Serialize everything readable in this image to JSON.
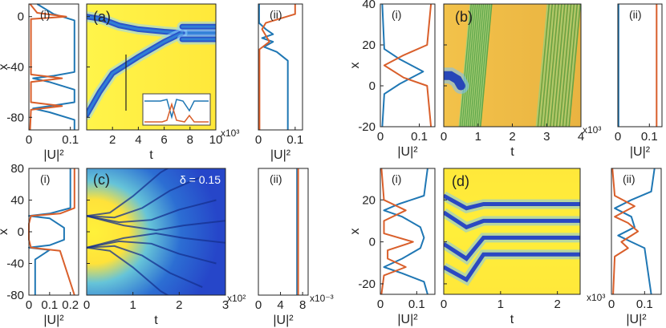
{
  "colors": {
    "blue": "#1f77b4",
    "orange": "#d95f2b",
    "yellow": "#fff200",
    "dark_blue": "#1f3ea8",
    "axis": "#222222"
  },
  "chart_data": [
    {
      "id": "a",
      "type": "heatmap",
      "panel_label": "(a)",
      "xlabel": "t",
      "ylabel": "x",
      "x_ticks": [
        "2",
        "4",
        "6",
        "8",
        "10"
      ],
      "y_ticks": [
        "0",
        "-40",
        "-80"
      ],
      "x_range": [
        0,
        10
      ],
      "y_range": [
        -90,
        10
      ],
      "x_multiplier": "x10³",
      "tracks": [
        {
          "x": [
            0,
            1.2,
            2.5,
            4,
            6,
            7.4,
            10
          ],
          "y": [
            0,
            -2,
            -7,
            -10,
            -12,
            -13,
            -13
          ]
        },
        {
          "x": [
            0,
            1,
            2,
            4,
            6,
            7.4
          ],
          "y": [
            -78,
            -60,
            -45,
            -32,
            -20,
            -13
          ]
        },
        {
          "x": [
            7.4,
            10
          ],
          "y": [
            -8,
            -8
          ]
        },
        {
          "x": [
            7.4,
            10
          ],
          "y": [
            -18,
            -18
          ]
        }
      ],
      "inset": {
        "type": "line",
        "note": "small inset profile"
      }
    },
    {
      "id": "a-i",
      "type": "line",
      "panel_label": "(i)",
      "xlabel": "|U|²",
      "ylabel": "x",
      "x_ticks": [
        "0",
        "0.1"
      ],
      "x_range": [
        0,
        0.12
      ],
      "y_range": [
        -90,
        10
      ],
      "series": [
        {
          "name": "",
          "x": [
            0.02,
            0.06,
            0.11,
            0.11,
            0.06,
            0.01,
            0.05,
            0.11,
            0.11,
            0.05,
            0.01,
            0.05,
            0.11,
            0.11
          ],
          "y": [
            10,
            2,
            -3,
            -44,
            -47,
            -49,
            -52,
            -58,
            -68,
            -71,
            -73,
            -76,
            -82,
            -90
          ],
          "color": "blue"
        },
        {
          "name": "",
          "x": [
            0.003,
            0.02,
            0.09,
            0.005,
            0.005,
            0.08,
            0.005,
            0.005,
            0.08,
            0.005,
            0.003
          ],
          "y": [
            10,
            3,
            0,
            -2,
            -46,
            -49,
            -52,
            -68,
            -71,
            -74,
            -90
          ],
          "color": "orange"
        }
      ]
    },
    {
      "id": "a-ii",
      "type": "line",
      "panel_label": "(ii)",
      "xlabel": "|U|²",
      "ylabel": "",
      "x_ticks": [
        "0",
        "0.1"
      ],
      "x_range": [
        0,
        0.12
      ],
      "y_range": [
        -90,
        10
      ],
      "series": [
        {
          "name": "",
          "x": [
            0.002,
            0.002,
            0.02,
            0.04,
            0.01,
            0.04,
            0.015,
            0.05,
            0.08,
            0.08
          ],
          "y": [
            10,
            -5,
            -10,
            -14,
            -17,
            -20,
            -24,
            -28,
            -35,
            -90
          ],
          "color": "blue"
        },
        {
          "name": "",
          "x": [
            0.1,
            0.1,
            0.02,
            0.01,
            0.03,
            0.003,
            0.003
          ],
          "y": [
            10,
            2,
            -5,
            -10,
            -20,
            -26,
            -90
          ],
          "color": "orange"
        }
      ]
    },
    {
      "id": "b",
      "type": "heatmap",
      "panel_label": "(b)",
      "xlabel": "t",
      "ylabel": "x",
      "x_ticks": [
        "0",
        "1",
        "2",
        "3",
        "4"
      ],
      "y_ticks": [
        "40",
        "20",
        "0",
        "-20"
      ],
      "x_range": [
        0,
        4
      ],
      "y_range": [
        -20,
        40
      ],
      "x_multiplier": "x10³",
      "tracks": [
        {
          "x": [
            0,
            0.2,
            0.4,
            0.5
          ],
          "y": [
            5,
            5,
            3,
            0
          ]
        }
      ],
      "stripes": [
        {
          "x0": 0.45,
          "x1": 1.1
        },
        {
          "x0": 2.7,
          "x1": 3.7
        }
      ]
    },
    {
      "id": "b-i",
      "type": "line",
      "panel_label": "(i)",
      "xlabel": "|U|²",
      "ylabel": "x",
      "x_ticks": [
        "0",
        "0.1"
      ],
      "x_range": [
        0,
        0.14
      ],
      "y_range": [
        -20,
        40
      ],
      "series": [
        {
          "name": "",
          "x": [
            0.005,
            0.01,
            0.05,
            0.11,
            0.05,
            0.01,
            0.005
          ],
          "y": [
            40,
            18,
            13,
            7,
            1,
            -4,
            -20
          ],
          "color": "blue"
        },
        {
          "name": "",
          "x": [
            0.13,
            0.12,
            0.06,
            0.01,
            0.06,
            0.12,
            0.13
          ],
          "y": [
            40,
            20,
            15,
            10,
            4,
            0,
            -20
          ],
          "color": "orange"
        }
      ]
    },
    {
      "id": "b-ii",
      "type": "line",
      "panel_label": "(ii)",
      "xlabel": "|U|²",
      "ylabel": "",
      "x_ticks": [
        "0",
        "0.1"
      ],
      "x_range": [
        0,
        0.14
      ],
      "y_range": [
        -20,
        40
      ],
      "series": [
        {
          "name": "",
          "x": [
            0.002,
            0.002
          ],
          "y": [
            40,
            -20
          ],
          "color": "blue"
        },
        {
          "name": "",
          "x": [
            0.123,
            0.123
          ],
          "y": [
            40,
            -20
          ],
          "color": "orange"
        }
      ]
    },
    {
      "id": "c",
      "type": "heatmap",
      "panel_label": "(c)",
      "annotation": "δ = 0.15",
      "xlabel": "t",
      "ylabel": "x",
      "x_ticks": [
        "0",
        "1",
        "2",
        "3"
      ],
      "y_ticks": [
        "80",
        "40",
        "0",
        "-40",
        "-80"
      ],
      "x_range": [
        0,
        3
      ],
      "y_range": [
        -80,
        80
      ],
      "x_multiplier": "x10²"
    },
    {
      "id": "c-i",
      "type": "line",
      "panel_label": "(i)",
      "xlabel": "|U|²",
      "ylabel": "x",
      "x_ticks": [
        "0",
        "0.1",
        "0.2"
      ],
      "x_range": [
        0,
        0.24
      ],
      "y_range": [
        -80,
        80
      ],
      "series": [
        {
          "name": "",
          "x": [
            0.2,
            0.2,
            0.1,
            0.0,
            0.1,
            0.17,
            0.17,
            0.1,
            0.0,
            0.1,
            0.03,
            0.03
          ],
          "y": [
            80,
            30,
            23,
            20,
            17,
            5,
            -10,
            -17,
            -20,
            -23,
            -35,
            -80
          ],
          "color": "blue"
        },
        {
          "name": "",
          "x": [
            0.22,
            0.22,
            0.15,
            0.01,
            0.0,
            0.0,
            0.01,
            0.15,
            0.22
          ],
          "y": [
            80,
            30,
            23,
            20,
            10,
            -10,
            -20,
            -24,
            -80
          ],
          "color": "orange"
        }
      ]
    },
    {
      "id": "c-ii",
      "type": "line",
      "panel_label": "(ii)",
      "xlabel": "|U|²",
      "ylabel": "",
      "x_ticks": [
        "0",
        "4",
        "8"
      ],
      "x_range": [
        0,
        9
      ],
      "y_range": [
        -80,
        80
      ],
      "x_multiplier": "x10⁻³",
      "series": [
        {
          "name": "",
          "x": [
            7.0,
            7.0
          ],
          "y": [
            80,
            -80
          ],
          "color": "blue"
        },
        {
          "name": "",
          "x": [
            7.2,
            7.2
          ],
          "y": [
            80,
            -80
          ],
          "color": "orange"
        }
      ]
    },
    {
      "id": "d",
      "type": "heatmap",
      "panel_label": "(d)",
      "xlabel": "t",
      "ylabel": "x",
      "x_ticks": [
        "0",
        "1",
        "2"
      ],
      "y_ticks": [
        "20",
        "0",
        "-20"
      ],
      "x_range": [
        0,
        2.4
      ],
      "y_range": [
        -25,
        35
      ],
      "x_multiplier": "x10³"
    },
    {
      "id": "d-i",
      "type": "line",
      "panel_label": "(i)",
      "xlabel": "|U|²",
      "ylabel": "x",
      "x_ticks": [
        "0",
        "0.1"
      ],
      "x_range": [
        0,
        0.15
      ],
      "y_range": [
        -25,
        35
      ],
      "series": [
        {
          "name": "",
          "x": [
            0.13,
            0.12,
            0.05,
            0.01,
            0.06,
            0.11,
            0.12,
            0.11,
            0.06,
            0.01,
            0.06,
            0.12,
            0.13
          ],
          "y": [
            35,
            22,
            18,
            15,
            12,
            7,
            2,
            -3,
            -8,
            -12,
            -15,
            -19,
            -25
          ],
          "color": "blue"
        },
        {
          "name": "",
          "x": [
            0.003,
            0.01,
            0.07,
            0.01,
            0.01,
            0.09,
            0.02,
            0.02,
            0.07,
            0.01,
            0.003
          ],
          "y": [
            35,
            20,
            15,
            10,
            4,
            0,
            -4,
            -8,
            -12,
            -16,
            -25
          ],
          "color": "orange"
        }
      ]
    },
    {
      "id": "d-ii",
      "type": "line",
      "panel_label": "(ii)",
      "xlabel": "|U|²",
      "ylabel": "",
      "x_ticks": [
        "0",
        "0.1"
      ],
      "x_range": [
        0,
        0.15
      ],
      "y_range": [
        -25,
        35
      ],
      "series": [
        {
          "name": "",
          "x": [
            0.13,
            0.12,
            0.06,
            0.01,
            0.06,
            0.07,
            0.02,
            0.06,
            0.1,
            0.12
          ],
          "y": [
            35,
            24,
            20,
            16,
            12,
            7,
            3,
            0,
            -3,
            -25
          ],
          "color": "blue"
        },
        {
          "name": "",
          "x": [
            0.003,
            0.01,
            0.07,
            0.01,
            0.05,
            0.08,
            0.03,
            0.05,
            0.01,
            0.005
          ],
          "y": [
            35,
            22,
            17,
            12,
            9,
            5,
            0,
            -3,
            -7,
            -25
          ],
          "color": "orange"
        }
      ]
    }
  ]
}
